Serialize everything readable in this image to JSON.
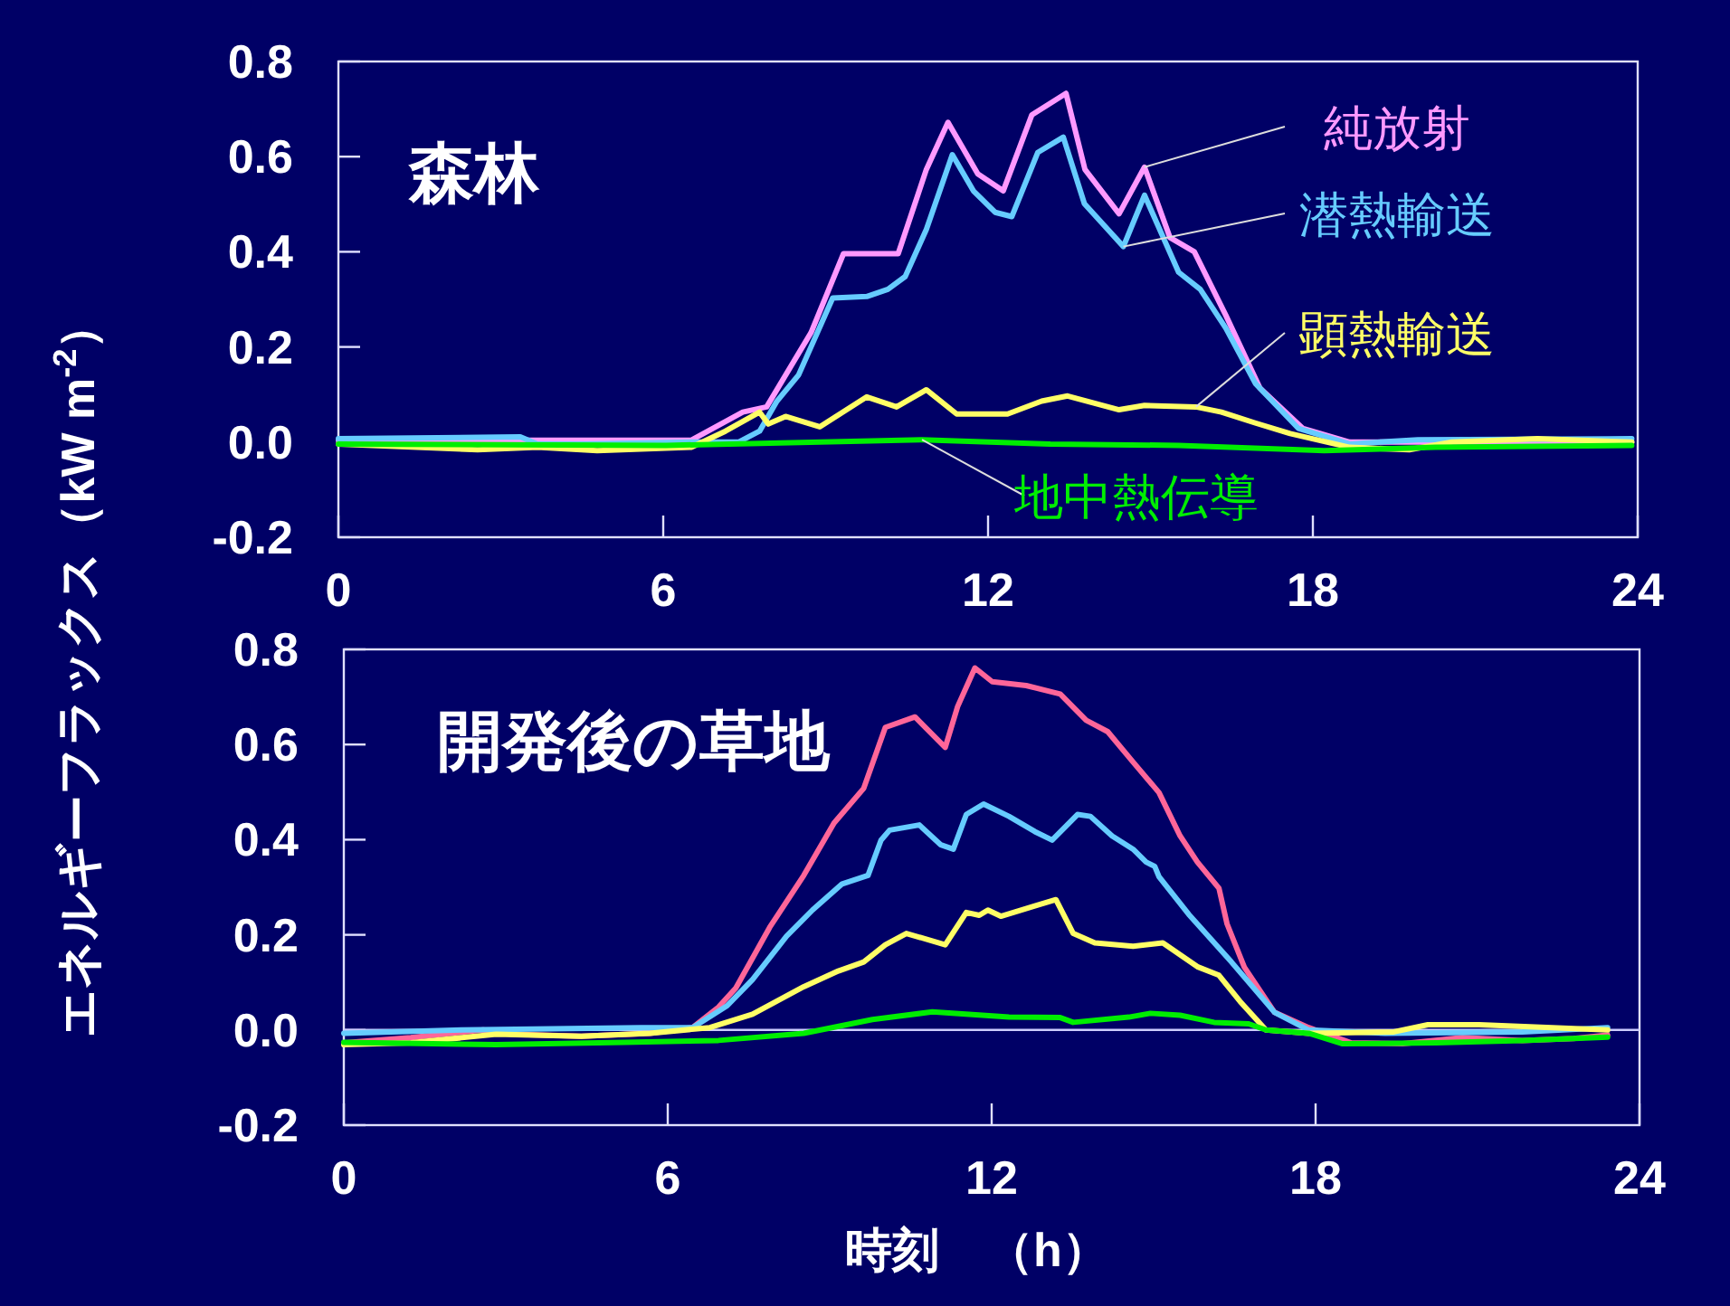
{
  "chart_data": [
    {
      "type": "line",
      "title": "森林",
      "ylabel": "エネルギーフラックス（kW m$^{-2}$）",
      "xlim": [
        0,
        24
      ],
      "xticks": [
        0,
        6,
        12,
        18,
        24
      ],
      "ylim": [
        -0.2,
        0.8
      ],
      "yticks": [
        -0.2,
        {
          "value": 0,
          "label": "0.0"
        },
        0.2,
        0.4,
        0.6,
        0.8
      ],
      "series": [
        {
          "name": "純放射",
          "color": "#ff99ff",
          "x": [
            0,
            3.52,
            6.52,
            7.47,
            7.91,
            8.73,
            9.33,
            10.34,
            10.86,
            11.26,
            11.81,
            12.28,
            12.81,
            13.44,
            13.79,
            14.42,
            14.89,
            15.36,
            15.81,
            16.39,
            17.02,
            17.81,
            18.68,
            20.26,
            23.89
          ],
          "values": [
            0.004,
            0.004,
            0.004,
            0.063,
            0.074,
            0.23,
            0.396,
            0.396,
            0.573,
            0.672,
            0.564,
            0.528,
            0.688,
            0.733,
            0.573,
            0.48,
            0.578,
            0.43,
            0.4,
            0.267,
            0.114,
            0.029,
            0,
            0,
            0
          ]
        },
        {
          "name": "潜熱輸送",
          "color": "#66ccff",
          "x": [
            0,
            3.36,
            3.68,
            4.47,
            6.52,
            7.39,
            7.78,
            8.1,
            8.5,
            9.13,
            9.76,
            10.15,
            10.47,
            10.86,
            11.34,
            11.73,
            12.13,
            12.44,
            12.92,
            13.39,
            13.78,
            14.5,
            14.89,
            15.52,
            15.92,
            16.39,
            16.94,
            17.73,
            18.68,
            19.94,
            23.89
          ],
          "values": [
            0.007,
            0.011,
            -0.004,
            -0.004,
            0,
            0,
            0.023,
            0.086,
            0.141,
            0.303,
            0.306,
            0.321,
            0.348,
            0.447,
            0.604,
            0.528,
            0.483,
            0.474,
            0.609,
            0.641,
            0.501,
            0.411,
            0.519,
            0.357,
            0.321,
            0.24,
            0.123,
            0.029,
            -0.004,
            0.005,
            0.007
          ]
        },
        {
          "name": "顕熱輸送",
          "color": "#ffff66",
          "x": [
            0,
            2.57,
            3.68,
            4.78,
            6.52,
            7.15,
            7.78,
            7.94,
            8.26,
            8.89,
            9.76,
            10.31,
            10.86,
            11.42,
            12.36,
            12.99,
            13.47,
            14.42,
            14.89,
            15.84,
            16.31,
            16.94,
            17.58,
            18.68,
            19.78,
            20.57,
            22.15,
            23.89
          ],
          "values": [
            -0.004,
            -0.016,
            -0.011,
            -0.018,
            -0.011,
            0.023,
            0.063,
            0.038,
            0.054,
            0.032,
            0.095,
            0.074,
            0.11,
            0.059,
            0.059,
            0.086,
            0.097,
            0.068,
            0.077,
            0.074,
            0.063,
            0.04,
            0.018,
            -0.011,
            -0.016,
            0,
            0.007,
            0
          ]
        },
        {
          "name": "地中熱伝導",
          "color": "#00ee00",
          "x": [
            0,
            6.05,
            10.78,
            13.15,
            15.52,
            18.21,
            20.26,
            23.89
          ],
          "values": [
            -0.004,
            -0.007,
            0.005,
            -0.004,
            -0.007,
            -0.018,
            -0.011,
            -0.007
          ]
        }
      ]
    },
    {
      "type": "line",
      "title": "開発後の草地",
      "xlabel": "時刻　（h）",
      "xlim": [
        0,
        24
      ],
      "xticks": [
        0,
        6,
        12,
        18,
        24
      ],
      "ylim": [
        -0.2,
        0.8
      ],
      "yticks": [
        -0.2,
        {
          "value": 0,
          "label": "0.0"
        },
        0.2,
        0.4,
        0.6,
        0.8
      ],
      "ref_lines": [
        {
          "axis": "y",
          "value": 0,
          "color": "#ccccff"
        }
      ],
      "series": [
        {
          "color": "#ff6699",
          "x": [
            0,
            1.24,
            2.58,
            3.14,
            4.4,
            5.67,
            6.46,
            6.94,
            7.26,
            7.89,
            8.52,
            9.08,
            9.63,
            10.03,
            10.58,
            11.14,
            11.37,
            11.69,
            12.01,
            12.64,
            13.27,
            13.75,
            14.15,
            14.62,
            15.1,
            15.49,
            15.81,
            16.21,
            16.36,
            16.68,
            17.24,
            17.87,
            18.66,
            19.61,
            20.72,
            21.83,
            22.78,
            23.41
          ],
          "values": [
            -0.027,
            -0.016,
            0,
            -0.009,
            -0.013,
            -0.007,
            0.005,
            0.048,
            0.088,
            0.216,
            0.325,
            0.435,
            0.508,
            0.636,
            0.658,
            0.594,
            0.68,
            0.761,
            0.732,
            0.724,
            0.706,
            0.651,
            0.627,
            0.563,
            0.499,
            0.408,
            0.353,
            0.298,
            0.223,
            0.132,
            0.037,
            0.005,
            -0.027,
            -0.029,
            -0.016,
            -0.022,
            -0.018,
            -0.011
          ]
        },
        {
          "color": "#66ccff",
          "x": [
            0,
            2.19,
            5.51,
            6.46,
            7.1,
            7.57,
            8.2,
            8.68,
            9.23,
            9.71,
            9.95,
            10.11,
            10.66,
            11.06,
            11.29,
            11.53,
            11.85,
            12.32,
            12.8,
            13.12,
            13.59,
            13.83,
            14.23,
            14.62,
            14.86,
            15.02,
            15.1,
            15.65,
            16.44,
            17.24,
            17.87,
            19.29,
            21.83,
            23.41
          ],
          "values": [
            -0.007,
            0,
            0.005,
            0.005,
            0.051,
            0.106,
            0.197,
            0.252,
            0.307,
            0.325,
            0.399,
            0.42,
            0.431,
            0.389,
            0.38,
            0.453,
            0.475,
            0.449,
            0.417,
            0.399,
            0.453,
            0.449,
            0.408,
            0.38,
            0.353,
            0.344,
            0.322,
            0.243,
            0.143,
            0.037,
            0,
            -0.007,
            -0.004,
            0.005
          ]
        },
        {
          "color": "#ffff66",
          "x": [
            0,
            1.24,
            2.82,
            4.4,
            5.67,
            6.78,
            7.57,
            8.52,
            9.16,
            9.63,
            10.03,
            10.42,
            11.14,
            11.53,
            11.77,
            11.93,
            12.17,
            12.8,
            13.19,
            13.51,
            13.91,
            14.62,
            15.17,
            15.81,
            16.21,
            16.6,
            17.08,
            17.87,
            19.45,
            20.08,
            21.03,
            23.41
          ],
          "values": [
            -0.031,
            -0.027,
            -0.009,
            -0.013,
            -0.007,
            0.005,
            0.033,
            0.091,
            0.124,
            0.143,
            0.179,
            0.203,
            0.179,
            0.247,
            0.241,
            0.252,
            0.239,
            0.261,
            0.274,
            0.203,
            0.183,
            0.176,
            0.183,
            0.133,
            0.115,
            0.06,
            0,
            -0.007,
            -0.004,
            0.011,
            0.011,
            0
          ]
        },
        {
          "color": "#00ee00",
          "x": [
            0,
            2.82,
            5.2,
            6.94,
            8.52,
            9.79,
            10.9,
            12.32,
            13.27,
            13.51,
            14.54,
            14.94,
            15.49,
            16.12,
            16.76,
            17.08,
            17.87,
            18.5,
            20.24,
            21.83,
            23.41
          ],
          "values": [
            -0.026,
            -0.031,
            -0.026,
            -0.022,
            -0.007,
            0.022,
            0.038,
            0.027,
            0.026,
            0.016,
            0.027,
            0.035,
            0.031,
            0.016,
            0.013,
            0,
            -0.007,
            -0.029,
            -0.027,
            -0.022,
            -0.015
          ]
        }
      ]
    }
  ]
}
